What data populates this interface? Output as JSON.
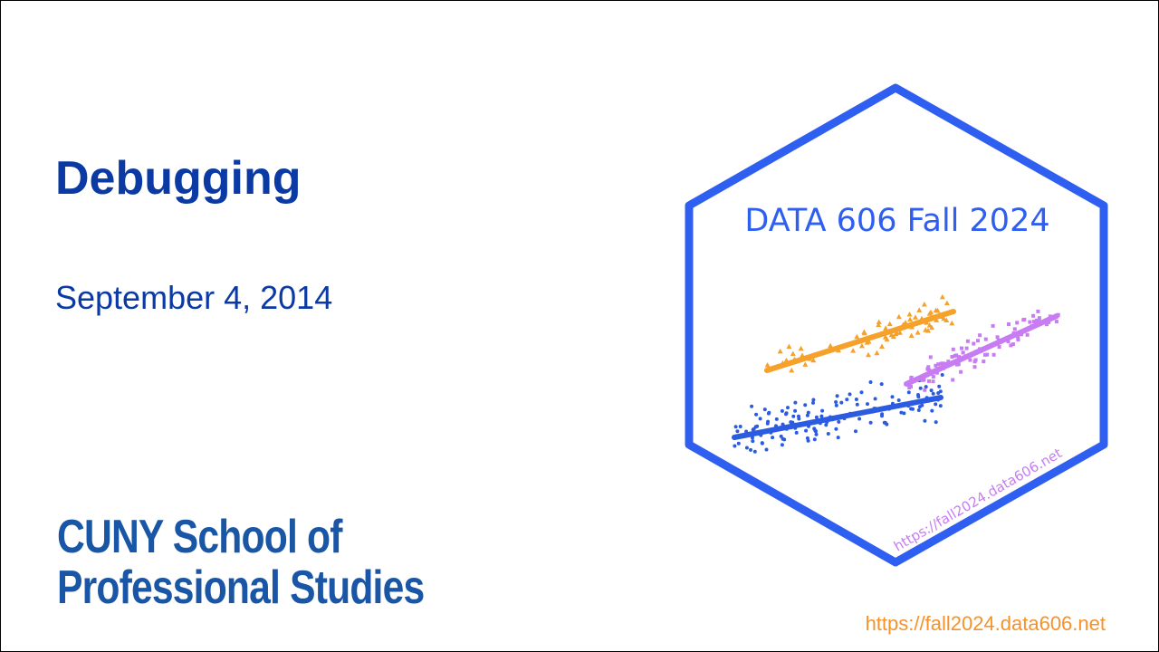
{
  "slide": {
    "title": "Debugging",
    "date": "September 4, 2014",
    "logo_line1": "CUNY School of",
    "logo_line2": "Professional Studies",
    "footer_url": "https://fall2024.data606.net"
  },
  "hex_sticker": {
    "title": "DATA 606 Fall 2024",
    "url": "https://fall2024.data606.net",
    "border_color": "#2f5ff0",
    "title_color": "#2f5ff0",
    "url_color": "#c77cf2"
  },
  "colors": {
    "title": "#0b3aa4",
    "logo": "#1a56a6",
    "footer_url": "#f5922b",
    "orange_series": "#f5a12a",
    "purple_series": "#c77cf2",
    "blue_series": "#2b5be0"
  }
}
